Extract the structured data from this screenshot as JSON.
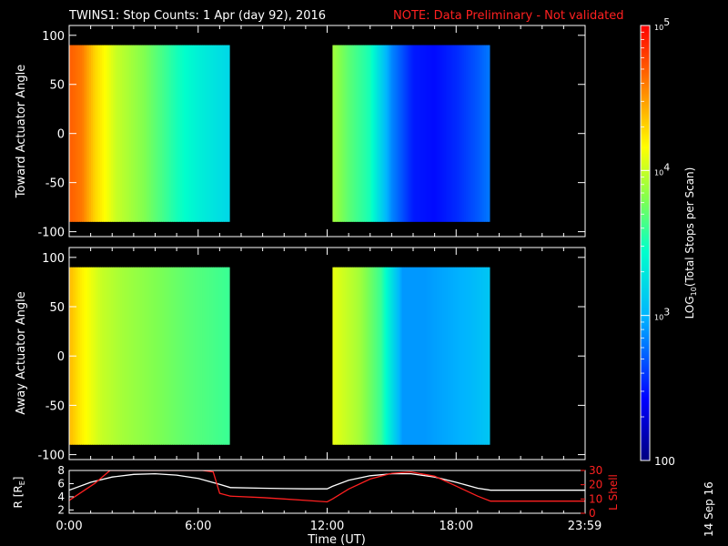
{
  "header": {
    "title": "TWINS1: Stop Counts:  1 Apr (day  92), 2016",
    "note": "NOTE: Data Preliminary - Not validated",
    "note_color": "#ff2020"
  },
  "footer": {
    "date_stamp": "14 Sep 16"
  },
  "chart_data": [
    {
      "type": "heatmap",
      "name": "Toward Actuator Angle",
      "ylabel": "Toward Actuator Angle",
      "xlabel": "",
      "xlim": [
        0,
        24
      ],
      "ylim": [
        -105,
        110
      ],
      "y_ticks": [
        100,
        50,
        0,
        -50,
        -100
      ],
      "color_scale": "log",
      "data_y_range": [
        -90,
        90
      ],
      "segments": [
        {
          "x_start": 0.0,
          "x_end": 7.45,
          "profile": [
            [
              0.0,
              4.7
            ],
            [
              0.6,
              4.6
            ],
            [
              1.2,
              4.3
            ],
            [
              2.2,
              4.0
            ],
            [
              3.5,
              3.8
            ],
            [
              5.0,
              3.5
            ],
            [
              6.0,
              3.35
            ],
            [
              7.45,
              3.2
            ]
          ]
        },
        {
          "x_start": 12.25,
          "x_end": 19.55,
          "profile": [
            [
              12.25,
              3.9
            ],
            [
              13.0,
              3.7
            ],
            [
              14.0,
              3.5
            ],
            [
              15.0,
              2.85
            ],
            [
              16.0,
              2.5
            ],
            [
              17.0,
              2.45
            ],
            [
              18.0,
              2.55
            ],
            [
              19.0,
              2.7
            ],
            [
              19.55,
              2.8
            ]
          ]
        }
      ]
    },
    {
      "type": "heatmap",
      "name": "Away Actuator Angle",
      "ylabel": "Away Actuator Angle",
      "xlabel": "",
      "xlim": [
        0,
        24
      ],
      "ylim": [
        -105,
        110
      ],
      "y_ticks": [
        100,
        50,
        0,
        -50,
        -100
      ],
      "color_scale": "log",
      "data_y_range": [
        -90,
        90
      ],
      "segments": [
        {
          "x_start": 0.0,
          "x_end": 7.45,
          "profile": [
            [
              0.0,
              4.4
            ],
            [
              0.6,
              4.2
            ],
            [
              1.5,
              4.0
            ],
            [
              2.5,
              3.9
            ],
            [
              4.0,
              3.8
            ],
            [
              5.5,
              3.7
            ],
            [
              7.45,
              3.6
            ]
          ]
        },
        {
          "x_start": 12.25,
          "x_end": 19.55,
          "profile": [
            [
              12.25,
              4.1
            ],
            [
              13.5,
              3.9
            ],
            [
              14.5,
              3.6
            ],
            [
              15.5,
              2.9
            ],
            [
              16.5,
              2.9
            ],
            [
              17.5,
              2.95
            ],
            [
              18.5,
              3.0
            ],
            [
              19.55,
              3.1
            ]
          ]
        }
      ]
    },
    {
      "type": "line",
      "name": "orbit",
      "xlabel": "Time (UT)",
      "x_ticks": [
        "0:00",
        "6:00",
        "12:00",
        "18:00",
        "23:59"
      ],
      "x_tick_hours": [
        0,
        6,
        12,
        18,
        23.98
      ],
      "xlim": [
        0,
        24
      ],
      "ylabel": "R [R",
      "ylabel_sub": "E",
      "ylabel_close": "]",
      "ylim": [
        1.5,
        8
      ],
      "y_ticks": [
        8,
        6,
        4,
        2
      ],
      "y2label": "L Shell",
      "y2lim": [
        0,
        30
      ],
      "y2_ticks": [
        30,
        20,
        10,
        0
      ],
      "series": [
        {
          "axis": "left",
          "color": "#ffffff",
          "x": [
            0,
            1,
            2,
            3,
            4,
            5,
            6,
            7,
            7.5,
            9,
            10,
            11,
            12,
            12.25,
            13,
            14,
            15,
            15.9,
            17,
            18,
            19,
            19.6,
            21,
            23.98
          ],
          "y": [
            5.0,
            6.2,
            7.0,
            7.4,
            7.5,
            7.3,
            6.8,
            5.9,
            5.4,
            5.3,
            5.25,
            5.2,
            5.2,
            5.6,
            6.5,
            7.2,
            7.5,
            7.5,
            7.0,
            6.2,
            5.3,
            5.0,
            5.0,
            5.0
          ]
        },
        {
          "axis": "right",
          "color": "#ff2020",
          "x": [
            0,
            0.5,
            1.2,
            1.9,
            2.05,
            6.2,
            6.7,
            7.0,
            7.5,
            9,
            10,
            11,
            12,
            12.25,
            13,
            14,
            15,
            15.9,
            17,
            18,
            19,
            19.6,
            21,
            23.98
          ],
          "y": [
            9,
            14,
            21,
            30,
            30,
            30,
            29,
            14,
            12,
            11,
            10,
            9,
            8,
            10,
            17,
            24,
            28,
            29,
            26,
            19,
            12,
            8.5,
            8.5,
            8.5
          ]
        }
      ]
    }
  ],
  "colorbar": {
    "label_pre": "LOG",
    "label_sub": "10",
    "label_post": "(Total Stops per Scan)",
    "scale": "log",
    "range": [
      2,
      5
    ],
    "ticks": [
      {
        "log": 5,
        "base": "10",
        "exp": "5"
      },
      {
        "log": 4,
        "base": "10",
        "exp": "4"
      },
      {
        "log": 3,
        "base": "10",
        "exp": "3"
      },
      {
        "log": 2,
        "base": "100",
        "exp": ""
      }
    ]
  }
}
